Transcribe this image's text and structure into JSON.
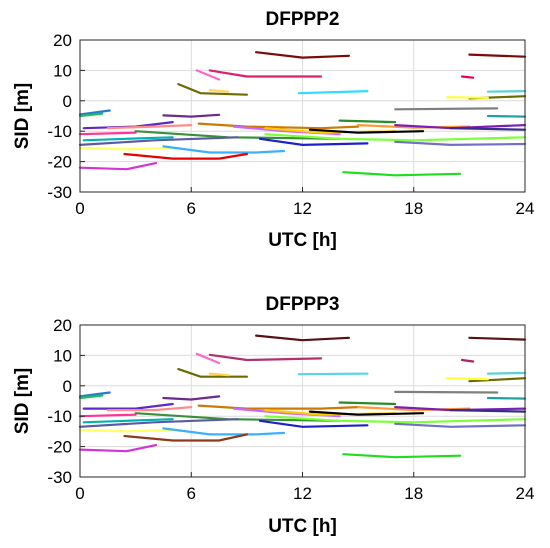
{
  "chart_data": [
    {
      "type": "line",
      "title": "DFPPP2",
      "xlabel": "UTC [h]",
      "ylabel": "SID [m]",
      "xlim": [
        0,
        24
      ],
      "ylim": [
        -30,
        20
      ],
      "xticks": [
        0,
        6,
        12,
        18,
        24
      ],
      "yticks": [
        -30,
        -20,
        -10,
        0,
        10,
        20
      ],
      "grid": true,
      "legend": "none",
      "series": [
        {
          "color": "#7b0a0a",
          "x": [
            9.5,
            12,
            14.5
          ],
          "y": [
            16,
            14.2,
            14.8
          ]
        },
        {
          "color": "#7b0a0a",
          "x": [
            21,
            24
          ],
          "y": [
            15.2,
            14.5
          ]
        },
        {
          "color": "#e01e6f",
          "x": [
            7,
            9,
            13
          ],
          "y": [
            10,
            8,
            8
          ]
        },
        {
          "color": "#ff66cc",
          "x": [
            6.3,
            7.5
          ],
          "y": [
            10,
            7
          ]
        },
        {
          "color": "#e8004a",
          "x": [
            20.6,
            21.2
          ],
          "y": [
            8,
            7.6
          ]
        },
        {
          "color": "#6b6b00",
          "x": [
            5.3,
            6.5,
            9
          ],
          "y": [
            5.5,
            2.5,
            2
          ]
        },
        {
          "color": "#ffd34d",
          "x": [
            7,
            8
          ],
          "y": [
            3.5,
            3
          ]
        },
        {
          "color": "#2fdcff",
          "x": [
            11.8,
            15.5
          ],
          "y": [
            2.5,
            3.2
          ]
        },
        {
          "color": "#6b6b00",
          "x": [
            21,
            24
          ],
          "y": [
            0.8,
            1.5
          ]
        },
        {
          "color": "#ffff33",
          "x": [
            19.8,
            22
          ],
          "y": [
            1.2,
            1.0
          ]
        },
        {
          "color": "#5ad2d2",
          "x": [
            22,
            24
          ],
          "y": [
            3,
            3.2
          ]
        },
        {
          "color": "#7f7f7f",
          "x": [
            17,
            22.5
          ],
          "y": [
            -2.8,
            -2.5
          ]
        },
        {
          "color": "#2878d8",
          "x": [
            0,
            1.6
          ],
          "y": [
            -4.5,
            -3.2
          ]
        },
        {
          "color": "#1fbf5f",
          "x": [
            0,
            1.2
          ],
          "y": [
            -5,
            -4.2
          ]
        },
        {
          "color": "#6a2c8c",
          "x": [
            4.5,
            6,
            7.5
          ],
          "y": [
            -4.8,
            -5.2,
            -4.6
          ]
        },
        {
          "color": "#5c2ac7",
          "x": [
            0.2,
            3,
            5
          ],
          "y": [
            -9,
            -8.5,
            -7
          ]
        },
        {
          "color": "#ff8c8c",
          "x": [
            1.5,
            4,
            6
          ],
          "y": [
            -9,
            -8.5,
            -8
          ]
        },
        {
          "color": "#cc7a00",
          "x": [
            6.4,
            9,
            13,
            15
          ],
          "y": [
            -7.5,
            -8.5,
            -9,
            -8.5
          ]
        },
        {
          "color": "#cc66ff",
          "x": [
            8.3,
            11,
            14
          ],
          "y": [
            -8.5,
            -10,
            -11
          ]
        },
        {
          "color": "#2a8c2a",
          "x": [
            14,
            17
          ],
          "y": [
            -6.5,
            -7
          ]
        },
        {
          "color": "#ff9933",
          "x": [
            15,
            18,
            21
          ],
          "y": [
            -8,
            -8.8,
            -8.5
          ]
        },
        {
          "color": "#7a1fb5",
          "x": [
            17,
            20,
            24
          ],
          "y": [
            -8,
            -9,
            -8
          ]
        },
        {
          "color": "#3a2a8c",
          "x": [
            20,
            24
          ],
          "y": [
            -9,
            -9.5
          ]
        },
        {
          "color": "#1fa0a0",
          "x": [
            22,
            24
          ],
          "y": [
            -5,
            -5.2
          ]
        },
        {
          "color": "#ff3399",
          "x": [
            0,
            3
          ],
          "y": [
            -11,
            -10.5
          ]
        },
        {
          "color": "#00b3b3",
          "x": [
            0.2,
            2.5,
            5
          ],
          "y": [
            -13,
            -12.5,
            -12
          ]
        },
        {
          "color": "#3b8f3b",
          "x": [
            3,
            8,
            14
          ],
          "y": [
            -10,
            -12,
            -12.5
          ]
        },
        {
          "color": "#7dff3a",
          "x": [
            10,
            14,
            18,
            24
          ],
          "y": [
            -11,
            -12.5,
            -13,
            -12
          ]
        },
        {
          "color": "#ffcc00",
          "x": [
            10,
            13,
            17
          ],
          "y": [
            -9,
            -10.5,
            -10
          ]
        },
        {
          "color": "#000000",
          "x": [
            12.4,
            15,
            18.5
          ],
          "y": [
            -9.5,
            -10.5,
            -10
          ]
        },
        {
          "color": "#1f1fcc",
          "x": [
            9.7,
            12,
            15.5
          ],
          "y": [
            -12.5,
            -14.5,
            -14
          ]
        },
        {
          "color": "#7070c8",
          "x": [
            17,
            20,
            24
          ],
          "y": [
            -13.5,
            -14.5,
            -14.2
          ]
        },
        {
          "color": "#5a5aa8",
          "x": [
            0,
            4,
            8.5
          ],
          "y": [
            -14.5,
            -13,
            -12
          ]
        },
        {
          "color": "#ffff66",
          "x": [
            0,
            2.5,
            5
          ],
          "y": [
            -15.5,
            -16,
            -15.5
          ]
        },
        {
          "color": "#3ab0ff",
          "x": [
            4.5,
            7,
            9.5,
            11
          ],
          "y": [
            -15,
            -17,
            -17,
            -16.5
          ]
        },
        {
          "color": "#e60000",
          "x": [
            2.4,
            5,
            7.5,
            9
          ],
          "y": [
            -17.5,
            -19,
            -19,
            -17.5
          ]
        },
        {
          "color": "#d633d6",
          "x": [
            0,
            2.5,
            4.1
          ],
          "y": [
            -22,
            -22.5,
            -20.5
          ]
        },
        {
          "color": "#1fdc1f",
          "x": [
            14.2,
            17,
            20.5
          ],
          "y": [
            -23.5,
            -24.5,
            -24
          ]
        }
      ]
    },
    {
      "type": "line",
      "title": "DFPPP3",
      "xlabel": "UTC [h]",
      "ylabel": "SID [m]",
      "xlim": [
        0,
        24
      ],
      "ylim": [
        -30,
        20
      ],
      "xticks": [
        0,
        6,
        12,
        18,
        24
      ],
      "yticks": [
        -30,
        -20,
        -10,
        0,
        10,
        20
      ],
      "grid": true,
      "legend": "none",
      "series": [
        {
          "color": "#5a1010",
          "x": [
            9.5,
            12,
            14.5
          ],
          "y": [
            16.5,
            15,
            15.8
          ]
        },
        {
          "color": "#5a1010",
          "x": [
            21,
            24
          ],
          "y": [
            15.8,
            15.2
          ]
        },
        {
          "color": "#b03070",
          "x": [
            7,
            9,
            13
          ],
          "y": [
            10.2,
            8.5,
            9
          ]
        },
        {
          "color": "#ff66cc",
          "x": [
            6.3,
            7.5
          ],
          "y": [
            10.5,
            7.5
          ]
        },
        {
          "color": "#b0206a",
          "x": [
            20.6,
            21.2
          ],
          "y": [
            8.5,
            8
          ]
        },
        {
          "color": "#6b6b00",
          "x": [
            5.3,
            6.5,
            9
          ],
          "y": [
            5.5,
            3,
            3
          ]
        },
        {
          "color": "#ffd34d",
          "x": [
            7,
            8
          ],
          "y": [
            4,
            3.5
          ]
        },
        {
          "color": "#5ad2f0",
          "x": [
            11.8,
            15.5
          ],
          "y": [
            3.8,
            4
          ]
        },
        {
          "color": "#6b6b00",
          "x": [
            21,
            24
          ],
          "y": [
            1.5,
            2.5
          ]
        },
        {
          "color": "#ffff33",
          "x": [
            19.8,
            22
          ],
          "y": [
            2.5,
            2.2
          ]
        },
        {
          "color": "#5ad2d2",
          "x": [
            22,
            24
          ],
          "y": [
            4,
            4.2
          ]
        },
        {
          "color": "#7f7f7f",
          "x": [
            17,
            22.5
          ],
          "y": [
            -2,
            -2.2
          ]
        },
        {
          "color": "#2878d8",
          "x": [
            0,
            1.6
          ],
          "y": [
            -3.5,
            -2.2
          ]
        },
        {
          "color": "#1fbf5f",
          "x": [
            0,
            1.2
          ],
          "y": [
            -4,
            -3.2
          ]
        },
        {
          "color": "#6a2c8c",
          "x": [
            4.5,
            6,
            7.5
          ],
          "y": [
            -4,
            -4.5,
            -3.5
          ]
        },
        {
          "color": "#5c2ac7",
          "x": [
            0.2,
            3,
            5
          ],
          "y": [
            -7.5,
            -7.5,
            -6
          ]
        },
        {
          "color": "#ff8c8c",
          "x": [
            1.5,
            4,
            6
          ],
          "y": [
            -8,
            -8,
            -7
          ]
        },
        {
          "color": "#cc7a00",
          "x": [
            6.4,
            9,
            13,
            15
          ],
          "y": [
            -6.5,
            -7.5,
            -7.5,
            -7
          ]
        },
        {
          "color": "#cc66ff",
          "x": [
            8.3,
            11,
            14
          ],
          "y": [
            -7.5,
            -9,
            -10
          ]
        },
        {
          "color": "#2a8c2a",
          "x": [
            14,
            17
          ],
          "y": [
            -5.5,
            -6
          ]
        },
        {
          "color": "#ff9933",
          "x": [
            15,
            18,
            21
          ],
          "y": [
            -7,
            -8,
            -7.5
          ]
        },
        {
          "color": "#7a1fb5",
          "x": [
            17,
            20,
            24
          ],
          "y": [
            -7,
            -8,
            -7.5
          ]
        },
        {
          "color": "#3a2a8c",
          "x": [
            20,
            24
          ],
          "y": [
            -8,
            -8.5
          ]
        },
        {
          "color": "#1fa0a0",
          "x": [
            22,
            24
          ],
          "y": [
            -4,
            -4.2
          ]
        },
        {
          "color": "#ff3399",
          "x": [
            0,
            3
          ],
          "y": [
            -10,
            -9.5
          ]
        },
        {
          "color": "#00b3b3",
          "x": [
            0.2,
            2.5,
            5
          ],
          "y": [
            -12,
            -11.5,
            -11
          ]
        },
        {
          "color": "#3b8f3b",
          "x": [
            3,
            8,
            14
          ],
          "y": [
            -9,
            -11,
            -11.5
          ]
        },
        {
          "color": "#7dff3a",
          "x": [
            10,
            14,
            18,
            24
          ],
          "y": [
            -10,
            -11.5,
            -12,
            -11
          ]
        },
        {
          "color": "#ffcc00",
          "x": [
            10,
            13,
            17
          ],
          "y": [
            -8,
            -9.5,
            -9
          ]
        },
        {
          "color": "#000000",
          "x": [
            12.4,
            15,
            18.5
          ],
          "y": [
            -8.5,
            -9.5,
            -9
          ]
        },
        {
          "color": "#1f1fcc",
          "x": [
            9.7,
            12,
            15.5
          ],
          "y": [
            -11.5,
            -13.5,
            -13
          ]
        },
        {
          "color": "#7070c8",
          "x": [
            17,
            20,
            24
          ],
          "y": [
            -12.5,
            -13.5,
            -13
          ]
        },
        {
          "color": "#5a5aa8",
          "x": [
            0,
            4,
            8.5
          ],
          "y": [
            -13.5,
            -12,
            -11
          ]
        },
        {
          "color": "#ffff66",
          "x": [
            0,
            2.5,
            5
          ],
          "y": [
            -14.5,
            -15,
            -14.5
          ]
        },
        {
          "color": "#3ab0ff",
          "x": [
            4.5,
            7,
            9.5,
            11
          ],
          "y": [
            -14,
            -16,
            -16,
            -15.5
          ]
        },
        {
          "color": "#8b3a1a",
          "x": [
            2.4,
            5,
            7.5,
            9
          ],
          "y": [
            -16.5,
            -18,
            -18,
            -16
          ]
        },
        {
          "color": "#d633d6",
          "x": [
            0,
            2.5,
            4.1
          ],
          "y": [
            -21,
            -21.5,
            -19.5
          ]
        },
        {
          "color": "#1fdc1f",
          "x": [
            14.2,
            17,
            20.5
          ],
          "y": [
            -22.5,
            -23.5,
            -23
          ]
        }
      ]
    }
  ]
}
